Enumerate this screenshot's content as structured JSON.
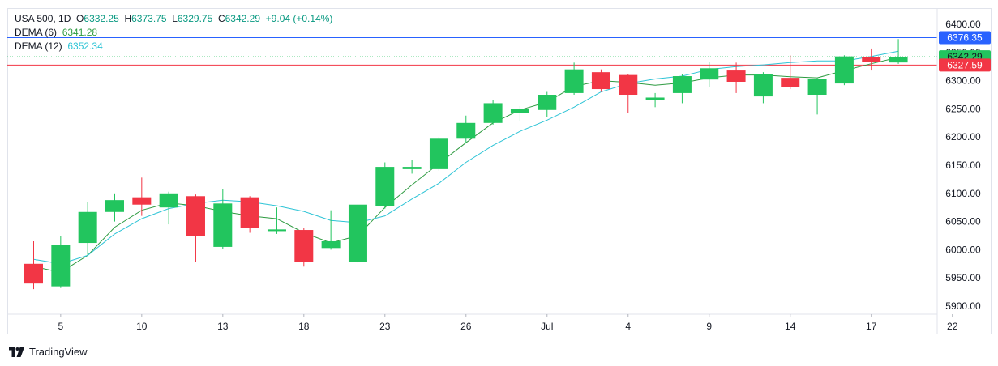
{
  "legend": {
    "symbol": "USA 500, 1D",
    "o_label": "O",
    "o_value": "6332.25",
    "h_label": "H",
    "h_value": "6373.75",
    "l_label": "L",
    "l_value": "6329.75",
    "c_label": "C",
    "c_value": "6342.29",
    "change": "+9.04 (+0.14%)",
    "dema6_label": "DEMA (6)",
    "dema6_value": "6341.28",
    "dema12_label": "DEMA (12)",
    "dema12_value": "6352.34"
  },
  "branding": {
    "name": "TradingView"
  },
  "colors": {
    "up": "#22c55e",
    "down": "#f23645",
    "dema6": "#2e9b41",
    "dema12": "#2ec4d6",
    "blue_line": "#2962ff",
    "red_line": "#f23645"
  },
  "chart_data": {
    "type": "candlestick",
    "ylim": [
      5880,
      6425
    ],
    "y_ticks": [
      "5900.00",
      "5950.00",
      "6000.00",
      "6050.00",
      "6100.00",
      "6150.00",
      "6200.00",
      "6250.00",
      "6300.00",
      "6350.00",
      "6400.00"
    ],
    "x_ticks": [
      {
        "label": "5",
        "index": 1
      },
      {
        "label": "10",
        "index": 4
      },
      {
        "label": "13",
        "index": 7
      },
      {
        "label": "18",
        "index": 10
      },
      {
        "label": "23",
        "index": 13
      },
      {
        "label": "26",
        "index": 16
      },
      {
        "label": "Jul",
        "index": 19
      },
      {
        "label": "4",
        "index": 22
      },
      {
        "label": "9",
        "index": 25
      },
      {
        "label": "14",
        "index": 28
      },
      {
        "label": "17",
        "index": 31
      },
      {
        "label": "22",
        "index": 34
      }
    ],
    "candles": [
      {
        "o": 5975,
        "h": 6015,
        "l": 5930,
        "c": 5940
      },
      {
        "o": 5935,
        "h": 6025,
        "l": 5932,
        "c": 6008
      },
      {
        "o": 6012,
        "h": 6085,
        "l": 5990,
        "c": 6067
      },
      {
        "o": 6067,
        "h": 6100,
        "l": 6050,
        "c": 6088
      },
      {
        "o": 6093,
        "h": 6128,
        "l": 6060,
        "c": 6080
      },
      {
        "o": 6075,
        "h": 6103,
        "l": 6045,
        "c": 6100
      },
      {
        "o": 6095,
        "h": 6098,
        "l": 5978,
        "c": 6025
      },
      {
        "o": 6005,
        "h": 6108,
        "l": 6002,
        "c": 6082
      },
      {
        "o": 6093,
        "h": 6095,
        "l": 6030,
        "c": 6038
      },
      {
        "o": 6033,
        "h": 6075,
        "l": 6028,
        "c": 6036
      },
      {
        "o": 6035,
        "h": 6038,
        "l": 5970,
        "c": 5978
      },
      {
        "o": 6003,
        "h": 6070,
        "l": 6000,
        "c": 6015
      },
      {
        "o": 5978,
        "h": 6080,
        "l": 5977,
        "c": 6080
      },
      {
        "o": 6077,
        "h": 6155,
        "l": 6073,
        "c": 6147
      },
      {
        "o": 6143,
        "h": 6160,
        "l": 6135,
        "c": 6147
      },
      {
        "o": 6143,
        "h": 6200,
        "l": 6140,
        "c": 6197
      },
      {
        "o": 6197,
        "h": 6238,
        "l": 6190,
        "c": 6225
      },
      {
        "o": 6225,
        "h": 6265,
        "l": 6222,
        "c": 6260
      },
      {
        "o": 6243,
        "h": 6255,
        "l": 6228,
        "c": 6250
      },
      {
        "o": 6248,
        "h": 6280,
        "l": 6235,
        "c": 6275
      },
      {
        "o": 6278,
        "h": 6332,
        "l": 6275,
        "c": 6320
      },
      {
        "o": 6315,
        "h": 6320,
        "l": 6280,
        "c": 6285
      },
      {
        "o": 6310,
        "h": 6312,
        "l": 6243,
        "c": 6275
      },
      {
        "o": 6265,
        "h": 6278,
        "l": 6253,
        "c": 6270
      },
      {
        "o": 6278,
        "h": 6312,
        "l": 6260,
        "c": 6308
      },
      {
        "o": 6302,
        "h": 6333,
        "l": 6288,
        "c": 6322
      },
      {
        "o": 6318,
        "h": 6332,
        "l": 6278,
        "c": 6298
      },
      {
        "o": 6272,
        "h": 6315,
        "l": 6260,
        "c": 6312
      },
      {
        "o": 6305,
        "h": 6345,
        "l": 6285,
        "c": 6288
      },
      {
        "o": 6275,
        "h": 6305,
        "l": 6240,
        "c": 6303
      },
      {
        "o": 6295,
        "h": 6345,
        "l": 6292,
        "c": 6343
      },
      {
        "o": 6342,
        "h": 6357,
        "l": 6318,
        "c": 6333
      },
      {
        "o": 6332.25,
        "h": 6373.75,
        "l": 6329.75,
        "c": 6342.29
      }
    ],
    "series": [
      {
        "name": "DEMA (6)",
        "values": [
          5970,
          5960,
          5990,
          6040,
          6070,
          6083,
          6078,
          6068,
          6060,
          6055,
          6030,
          6012,
          6025,
          6075,
          6115,
          6153,
          6190,
          6225,
          6248,
          6262,
          6290,
          6300,
          6297,
          6292,
          6296,
          6305,
          6310,
          6310,
          6307,
          6305,
          6318,
          6330,
          6341.28
        ]
      },
      {
        "name": "DEMA (12)",
        "values": [
          5983,
          5975,
          5990,
          6028,
          6055,
          6073,
          6082,
          6088,
          6085,
          6078,
          6068,
          6052,
          6048,
          6060,
          6090,
          6118,
          6155,
          6185,
          6210,
          6230,
          6253,
          6280,
          6295,
          6303,
          6308,
          6320,
          6325,
          6328,
          6332,
          6335,
          6335,
          6343,
          6352.34
        ]
      }
    ],
    "horizontal_lines": [
      {
        "value": 6376.35,
        "label": "6376.35",
        "color": "#2962ff"
      },
      {
        "value": 6327.59,
        "label": "6327.59",
        "color": "#f23645"
      }
    ],
    "last_price": {
      "value": 6342.29,
      "label": "6342.29"
    },
    "grid": false
  }
}
